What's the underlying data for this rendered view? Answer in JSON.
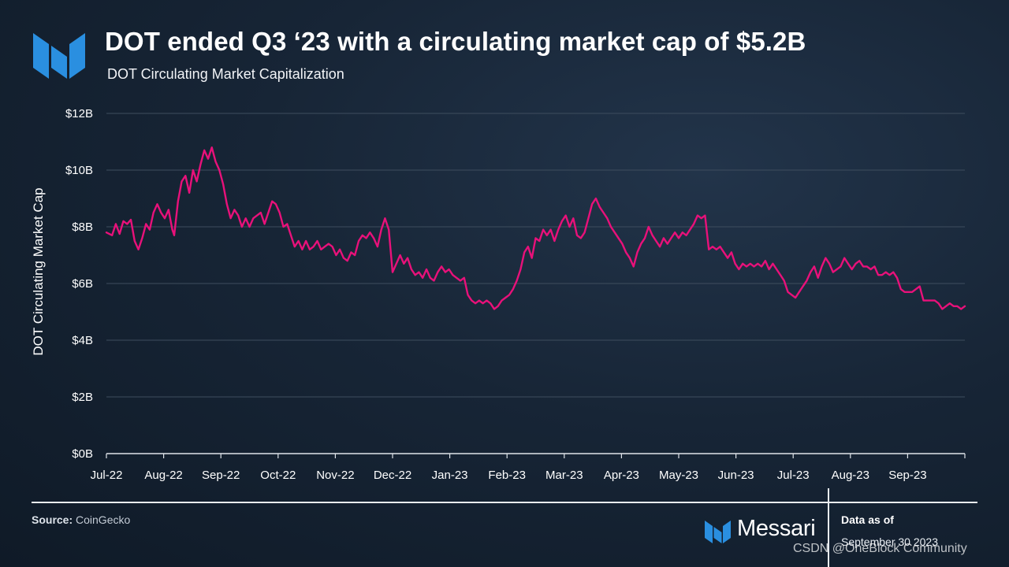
{
  "header": {
    "title": "DOT ended Q3 ‘23 with a circulating market cap of $5.2B",
    "subtitle": "DOT Circulating Market Capitalization"
  },
  "footer": {
    "source_label": "Source:",
    "source_value": "CoinGecko",
    "brand": "Messari",
    "data_as_of_label": "Data as of",
    "data_as_of_date": "September 30 2023",
    "watermark": "CSDN @OneBlock Community"
  },
  "colors": {
    "line": "#e8117a",
    "logo": "#2a8fe0",
    "grid": "#3e4d5e"
  },
  "chart_data": {
    "type": "line",
    "ylabel": "DOT Circulating Market Cap",
    "xlabel": "",
    "ylim": [
      0,
      12
    ],
    "yticks": [
      "$0B",
      "$2B",
      "$4B",
      "$6B",
      "$8B",
      "$10B",
      "$12B"
    ],
    "xticks": [
      "Jul-22",
      "Aug-22",
      "Sep-22",
      "Oct-22",
      "Nov-22",
      "Dec-22",
      "Jan-23",
      "Feb-23",
      "Mar-23",
      "Apr-23",
      "May-23",
      "Jun-23",
      "Jul-23",
      "Aug-23",
      "Sep-23"
    ],
    "x_range_days": [
      0,
      456
    ],
    "series": [
      {
        "name": "DOT Circulating Market Cap ($B)",
        "points": [
          [
            0,
            7.8
          ],
          [
            3,
            7.7
          ],
          [
            5,
            8.1
          ],
          [
            7,
            7.75
          ],
          [
            9,
            8.2
          ],
          [
            11,
            8.1
          ],
          [
            13,
            8.25
          ],
          [
            15,
            7.5
          ],
          [
            17,
            7.2
          ],
          [
            19,
            7.6
          ],
          [
            21,
            8.1
          ],
          [
            23,
            7.9
          ],
          [
            25,
            8.5
          ],
          [
            27,
            8.8
          ],
          [
            29,
            8.5
          ],
          [
            31,
            8.3
          ],
          [
            33,
            8.6
          ],
          [
            35,
            7.9
          ],
          [
            36,
            7.7
          ],
          [
            38,
            8.9
          ],
          [
            40,
            9.6
          ],
          [
            42,
            9.8
          ],
          [
            44,
            9.2
          ],
          [
            46,
            10.0
          ],
          [
            48,
            9.6
          ],
          [
            50,
            10.2
          ],
          [
            52,
            10.7
          ],
          [
            54,
            10.4
          ],
          [
            56,
            10.8
          ],
          [
            58,
            10.3
          ],
          [
            60,
            10.0
          ],
          [
            62,
            9.5
          ],
          [
            64,
            8.8
          ],
          [
            66,
            8.3
          ],
          [
            68,
            8.6
          ],
          [
            70,
            8.4
          ],
          [
            72,
            8.0
          ],
          [
            74,
            8.3
          ],
          [
            76,
            8.0
          ],
          [
            78,
            8.3
          ],
          [
            80,
            8.4
          ],
          [
            82,
            8.5
          ],
          [
            84,
            8.1
          ],
          [
            86,
            8.5
          ],
          [
            88,
            8.9
          ],
          [
            90,
            8.8
          ],
          [
            92,
            8.5
          ],
          [
            94,
            8.0
          ],
          [
            96,
            8.1
          ],
          [
            98,
            7.7
          ],
          [
            100,
            7.3
          ],
          [
            102,
            7.5
          ],
          [
            104,
            7.2
          ],
          [
            106,
            7.5
          ],
          [
            108,
            7.2
          ],
          [
            110,
            7.3
          ],
          [
            112,
            7.5
          ],
          [
            114,
            7.2
          ],
          [
            116,
            7.3
          ],
          [
            118,
            7.4
          ],
          [
            120,
            7.3
          ],
          [
            122,
            7.0
          ],
          [
            124,
            7.2
          ],
          [
            126,
            6.9
          ],
          [
            128,
            6.8
          ],
          [
            130,
            7.1
          ],
          [
            132,
            7.0
          ],
          [
            134,
            7.5
          ],
          [
            136,
            7.7
          ],
          [
            138,
            7.6
          ],
          [
            140,
            7.8
          ],
          [
            142,
            7.6
          ],
          [
            144,
            7.3
          ],
          [
            146,
            7.9
          ],
          [
            148,
            8.3
          ],
          [
            150,
            7.9
          ],
          [
            152,
            6.4
          ],
          [
            154,
            6.7
          ],
          [
            156,
            7.0
          ],
          [
            158,
            6.7
          ],
          [
            160,
            6.9
          ],
          [
            162,
            6.5
          ],
          [
            164,
            6.3
          ],
          [
            166,
            6.4
          ],
          [
            168,
            6.2
          ],
          [
            170,
            6.5
          ],
          [
            172,
            6.2
          ],
          [
            174,
            6.1
          ],
          [
            176,
            6.4
          ],
          [
            178,
            6.6
          ],
          [
            180,
            6.4
          ],
          [
            182,
            6.5
          ],
          [
            184,
            6.3
          ],
          [
            186,
            6.2
          ],
          [
            188,
            6.1
          ],
          [
            190,
            6.2
          ],
          [
            192,
            5.6
          ],
          [
            194,
            5.4
          ],
          [
            196,
            5.3
          ],
          [
            198,
            5.4
          ],
          [
            200,
            5.3
          ],
          [
            202,
            5.4
          ],
          [
            204,
            5.3
          ],
          [
            206,
            5.1
          ],
          [
            208,
            5.2
          ],
          [
            210,
            5.4
          ],
          [
            212,
            5.5
          ],
          [
            214,
            5.6
          ],
          [
            216,
            5.8
          ],
          [
            218,
            6.1
          ],
          [
            220,
            6.5
          ],
          [
            222,
            7.1
          ],
          [
            224,
            7.3
          ],
          [
            226,
            6.9
          ],
          [
            228,
            7.6
          ],
          [
            230,
            7.5
          ],
          [
            232,
            7.9
          ],
          [
            234,
            7.7
          ],
          [
            236,
            7.9
          ],
          [
            238,
            7.5
          ],
          [
            240,
            7.9
          ],
          [
            242,
            8.2
          ],
          [
            244,
            8.4
          ],
          [
            246,
            8.0
          ],
          [
            248,
            8.3
          ],
          [
            250,
            7.7
          ],
          [
            252,
            7.6
          ],
          [
            254,
            7.8
          ],
          [
            256,
            8.3
          ],
          [
            258,
            8.8
          ],
          [
            260,
            9.0
          ],
          [
            262,
            8.7
          ],
          [
            264,
            8.5
          ],
          [
            266,
            8.3
          ],
          [
            268,
            8.0
          ],
          [
            270,
            7.8
          ],
          [
            272,
            7.6
          ],
          [
            274,
            7.4
          ],
          [
            276,
            7.1
          ],
          [
            278,
            6.9
          ],
          [
            280,
            6.6
          ],
          [
            282,
            7.1
          ],
          [
            284,
            7.4
          ],
          [
            286,
            7.6
          ],
          [
            288,
            8.0
          ],
          [
            290,
            7.7
          ],
          [
            292,
            7.5
          ],
          [
            294,
            7.3
          ],
          [
            296,
            7.6
          ],
          [
            298,
            7.4
          ],
          [
            300,
            7.6
          ],
          [
            302,
            7.8
          ],
          [
            304,
            7.6
          ],
          [
            306,
            7.8
          ],
          [
            308,
            7.7
          ],
          [
            310,
            7.9
          ],
          [
            312,
            8.1
          ],
          [
            314,
            8.4
          ],
          [
            316,
            8.3
          ],
          [
            318,
            8.4
          ],
          [
            320,
            7.2
          ],
          [
            322,
            7.3
          ],
          [
            324,
            7.2
          ],
          [
            326,
            7.3
          ],
          [
            328,
            7.1
          ],
          [
            330,
            6.9
          ],
          [
            332,
            7.1
          ],
          [
            334,
            6.7
          ],
          [
            336,
            6.5
          ],
          [
            338,
            6.7
          ],
          [
            340,
            6.6
          ],
          [
            342,
            6.7
          ],
          [
            344,
            6.6
          ],
          [
            346,
            6.7
          ],
          [
            348,
            6.6
          ],
          [
            350,
            6.8
          ],
          [
            352,
            6.5
          ],
          [
            354,
            6.7
          ],
          [
            356,
            6.5
          ],
          [
            358,
            6.3
          ],
          [
            360,
            6.1
          ],
          [
            362,
            5.7
          ],
          [
            364,
            5.6
          ],
          [
            366,
            5.5
          ],
          [
            368,
            5.7
          ],
          [
            370,
            5.9
          ],
          [
            372,
            6.1
          ],
          [
            374,
            6.4
          ],
          [
            376,
            6.6
          ],
          [
            378,
            6.2
          ],
          [
            380,
            6.6
          ],
          [
            382,
            6.9
          ],
          [
            384,
            6.7
          ],
          [
            386,
            6.4
          ],
          [
            388,
            6.5
          ],
          [
            390,
            6.6
          ],
          [
            392,
            6.9
          ],
          [
            394,
            6.7
          ],
          [
            396,
            6.5
          ],
          [
            398,
            6.7
          ],
          [
            400,
            6.8
          ],
          [
            402,
            6.6
          ],
          [
            404,
            6.6
          ],
          [
            406,
            6.5
          ],
          [
            408,
            6.6
          ],
          [
            410,
            6.3
          ],
          [
            412,
            6.3
          ],
          [
            414,
            6.4
          ],
          [
            416,
            6.3
          ],
          [
            418,
            6.4
          ],
          [
            420,
            6.2
          ],
          [
            422,
            5.8
          ],
          [
            424,
            5.7
          ],
          [
            426,
            5.7
          ],
          [
            428,
            5.7
          ],
          [
            430,
            5.8
          ],
          [
            432,
            5.9
          ],
          [
            434,
            5.4
          ],
          [
            436,
            5.4
          ],
          [
            438,
            5.4
          ],
          [
            440,
            5.4
          ],
          [
            442,
            5.3
          ],
          [
            444,
            5.1
          ],
          [
            446,
            5.2
          ],
          [
            448,
            5.3
          ],
          [
            450,
            5.2
          ],
          [
            452,
            5.2
          ],
          [
            454,
            5.1
          ],
          [
            456,
            5.2
          ]
        ]
      }
    ]
  }
}
